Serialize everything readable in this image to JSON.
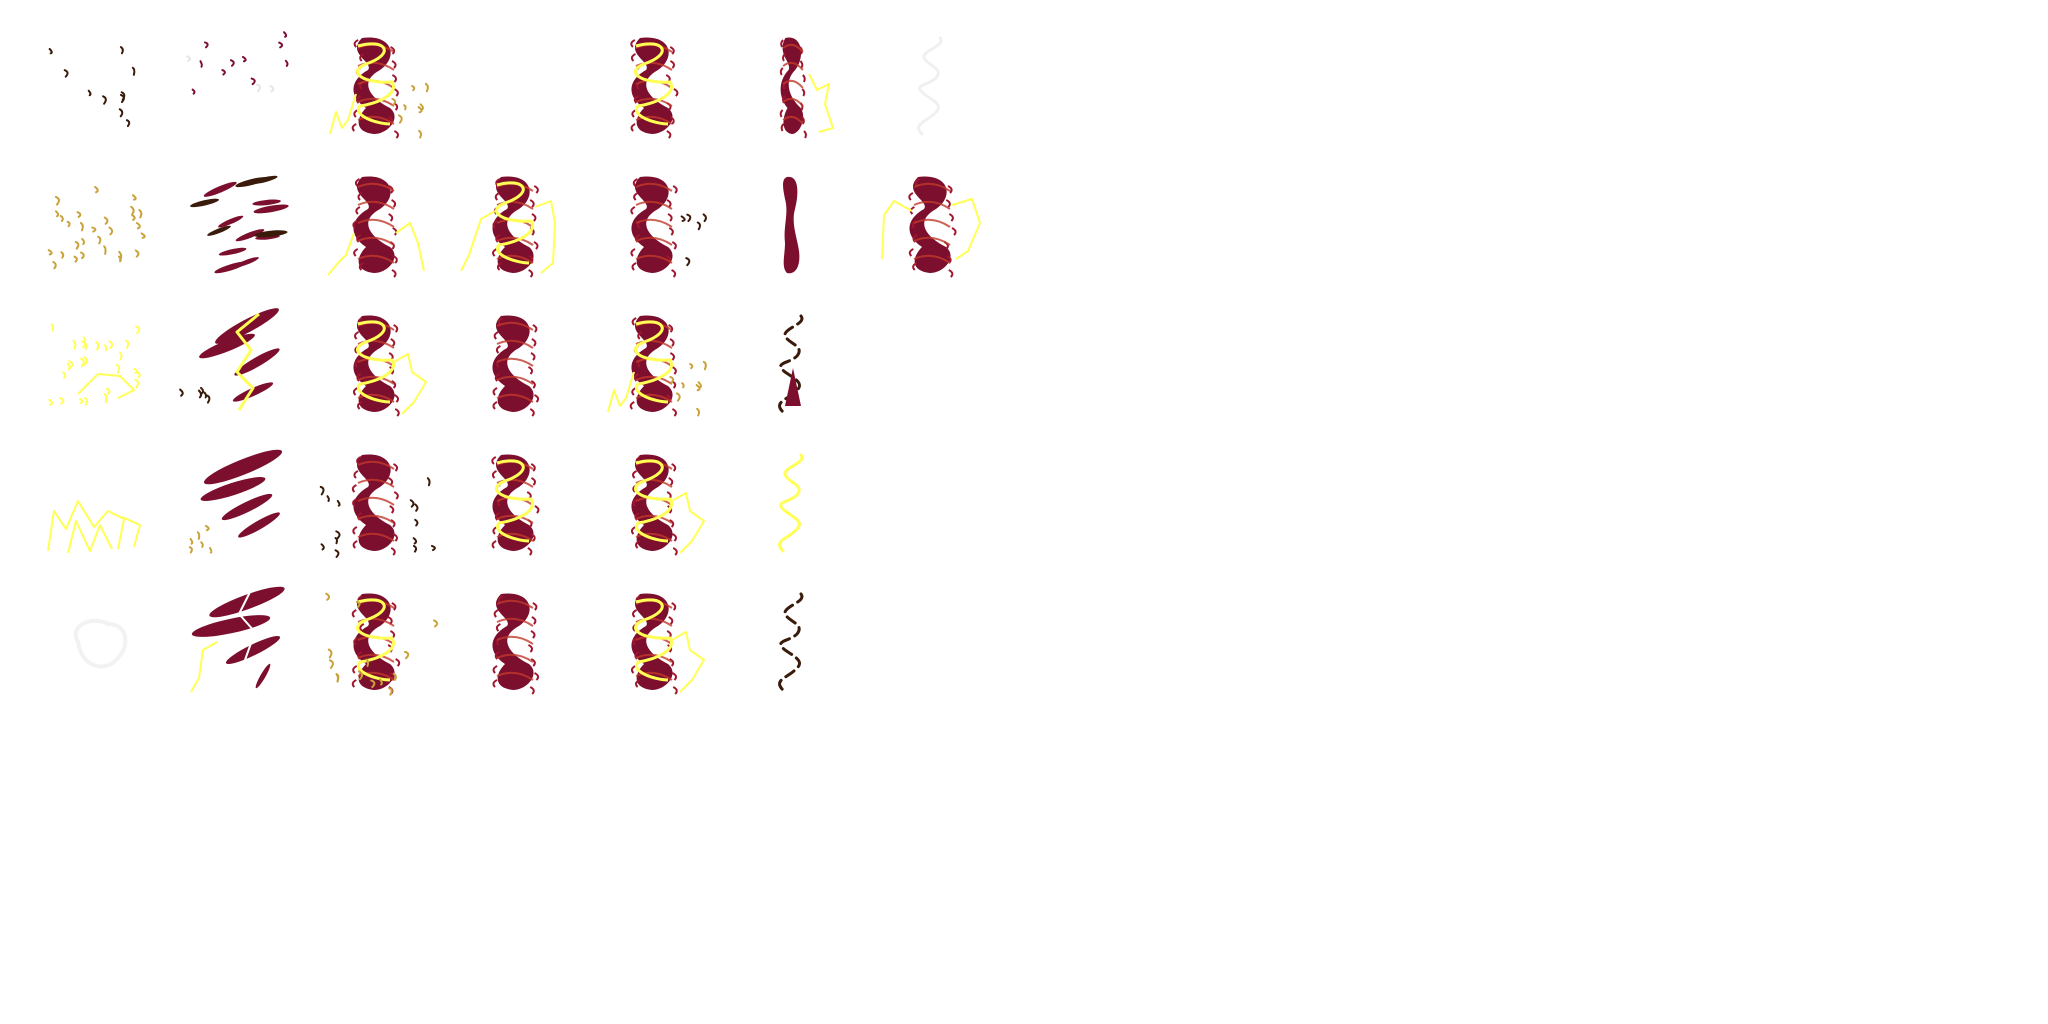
{
  "sheet": {
    "rows": 5,
    "columns": 7,
    "background": "#ffffff"
  },
  "palette": {
    "body": "#7d0f2e",
    "body_edge": "#a0162f",
    "stripe": "#c23a2a",
    "lightning": "#ffff55",
    "gold": "#c9a23a",
    "dark": "#3a1a0a",
    "faint": "#eeeeee"
  },
  "frames": [
    {
      "row": 0,
      "col": 0,
      "kind": "specks",
      "color": "dark"
    },
    {
      "row": 0,
      "col": 1,
      "kind": "specks-wide",
      "color": "body"
    },
    {
      "row": 0,
      "col": 2,
      "kind": "column-bolt-gold",
      "color": "body"
    },
    {
      "row": 0,
      "col": 4,
      "kind": "column-bolt",
      "color": "body"
    },
    {
      "row": 0,
      "col": 5,
      "kind": "column-narrow-bolt",
      "color": "body"
    },
    {
      "row": 0,
      "col": 6,
      "kind": "ghost-swirl",
      "color": "faint"
    },
    {
      "row": 1,
      "col": 0,
      "kind": "specks-dense",
      "color": "gold"
    },
    {
      "row": 1,
      "col": 1,
      "kind": "shards",
      "color": "body"
    },
    {
      "row": 1,
      "col": 2,
      "kind": "column-bolt-low",
      "color": "body"
    },
    {
      "row": 1,
      "col": 3,
      "kind": "column-bolt-wide",
      "color": "body"
    },
    {
      "row": 1,
      "col": 4,
      "kind": "column-specks",
      "color": "body"
    },
    {
      "row": 1,
      "col": 5,
      "kind": "pillar-thin",
      "color": "body"
    },
    {
      "row": 1,
      "col": 6,
      "kind": "column-bolt-both",
      "color": "body"
    },
    {
      "row": 2,
      "col": 0,
      "kind": "specks-bolt",
      "color": "lightning"
    },
    {
      "row": 2,
      "col": 1,
      "kind": "blades-bolt",
      "color": "body"
    },
    {
      "row": 2,
      "col": 2,
      "kind": "column-bolt-right",
      "color": "body"
    },
    {
      "row": 2,
      "col": 3,
      "kind": "column",
      "color": "body"
    },
    {
      "row": 2,
      "col": 4,
      "kind": "column-bolt-gold",
      "color": "body"
    },
    {
      "row": 2,
      "col": 5,
      "kind": "dark-swirl-spike",
      "color": "dark"
    },
    {
      "row": 3,
      "col": 0,
      "kind": "bolt-cluster",
      "color": "lightning"
    },
    {
      "row": 3,
      "col": 1,
      "kind": "blades",
      "color": "body"
    },
    {
      "row": 3,
      "col": 2,
      "kind": "column-specks-both",
      "color": "body"
    },
    {
      "row": 3,
      "col": 3,
      "kind": "column-bolt",
      "color": "body"
    },
    {
      "row": 3,
      "col": 4,
      "kind": "column-bolt-right",
      "color": "body"
    },
    {
      "row": 3,
      "col": 5,
      "kind": "bolt-swirl",
      "color": "lightning"
    },
    {
      "row": 4,
      "col": 0,
      "kind": "ghost-blob",
      "color": "faint"
    },
    {
      "row": 4,
      "col": 1,
      "kind": "blades-burst",
      "color": "body"
    },
    {
      "row": 4,
      "col": 2,
      "kind": "column-gold-specks",
      "color": "body"
    },
    {
      "row": 4,
      "col": 3,
      "kind": "column",
      "color": "body"
    },
    {
      "row": 4,
      "col": 4,
      "kind": "column-bolt-right",
      "color": "body"
    },
    {
      "row": 4,
      "col": 5,
      "kind": "dark-swirl",
      "color": "dark"
    }
  ]
}
